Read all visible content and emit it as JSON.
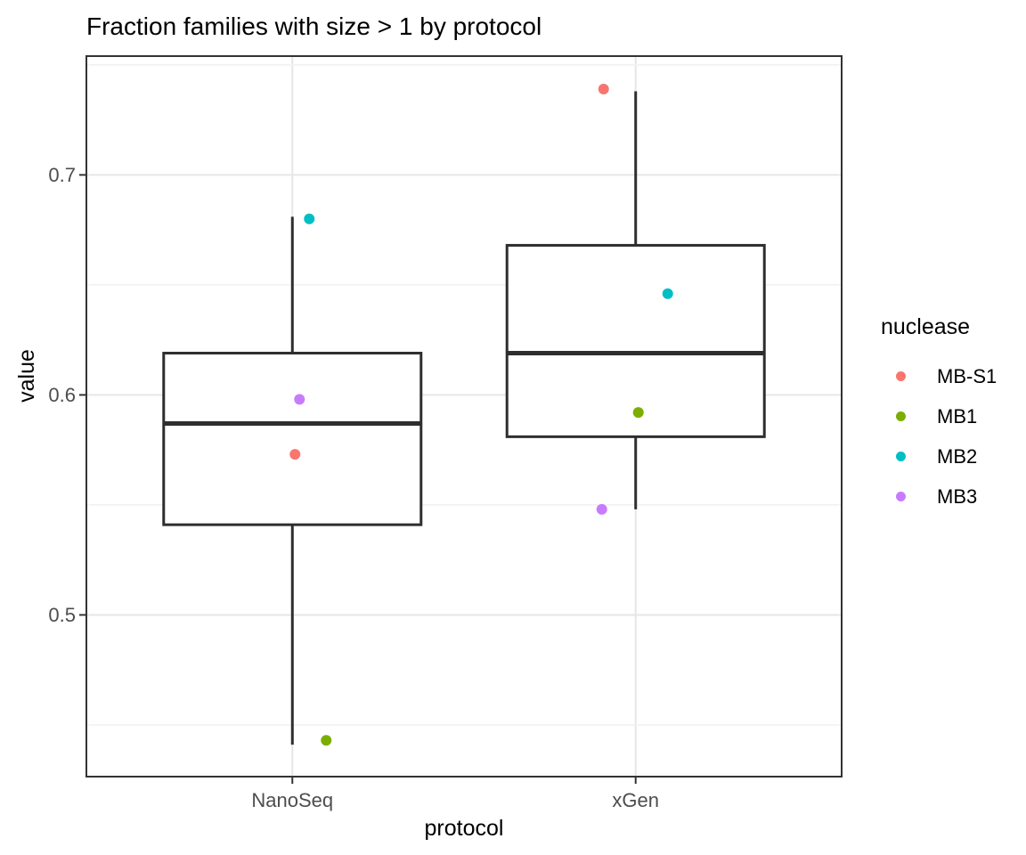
{
  "chart_data": {
    "type": "boxplot",
    "title": "Fraction families with size > 1 by protocol",
    "xlabel": "protocol",
    "ylabel": "value",
    "categories": [
      "NanoSeq",
      "xGen"
    ],
    "y_axis": {
      "ticks": [
        0.5,
        0.6,
        0.7
      ],
      "tick_labels": [
        "0.5",
        "0.6",
        "0.7"
      ],
      "minor_ticks": [
        0.45,
        0.55,
        0.65,
        0.75
      ],
      "domain": [
        0.4265,
        0.754
      ]
    },
    "boxes": [
      {
        "category": "NanoSeq",
        "min": 0.441,
        "q1": 0.541,
        "median": 0.587,
        "q3": 0.619,
        "max": 0.681
      },
      {
        "category": "xGen",
        "min": 0.548,
        "q1": 0.581,
        "median": 0.619,
        "q3": 0.668,
        "max": 0.738
      }
    ],
    "legend": {
      "title": "nuclease"
    },
    "series": [
      {
        "name": "MB-S1",
        "color": "#F8766D",
        "points": [
          {
            "category": "NanoSeq",
            "value": 0.573,
            "jitter_x": 3
          },
          {
            "category": "xGen",
            "value": 0.739,
            "jitter_x": -36
          }
        ]
      },
      {
        "name": "MB1",
        "color": "#7CAE00",
        "points": [
          {
            "category": "NanoSeq",
            "value": 0.443,
            "jitter_x": 38
          },
          {
            "category": "xGen",
            "value": 0.592,
            "jitter_x": 3
          }
        ]
      },
      {
        "name": "MB2",
        "color": "#00BFC4",
        "points": [
          {
            "category": "NanoSeq",
            "value": 0.68,
            "jitter_x": 19
          },
          {
            "category": "xGen",
            "value": 0.646,
            "jitter_x": 36
          }
        ]
      },
      {
        "name": "MB3",
        "color": "#C77CFF",
        "points": [
          {
            "category": "NanoSeq",
            "value": 0.598,
            "jitter_x": 8
          },
          {
            "category": "xGen",
            "value": 0.548,
            "jitter_x": -38
          }
        ]
      }
    ],
    "colors": {
      "background": "#ffffff",
      "grid_major": "#e6e6e6",
      "grid_minor": "#f1f1f1",
      "panel_border": "#333333",
      "box_stroke": "#2e2e2e",
      "tick_mark": "#333333",
      "tick_text": "#4d4d4d",
      "title_text": "#000000"
    }
  }
}
